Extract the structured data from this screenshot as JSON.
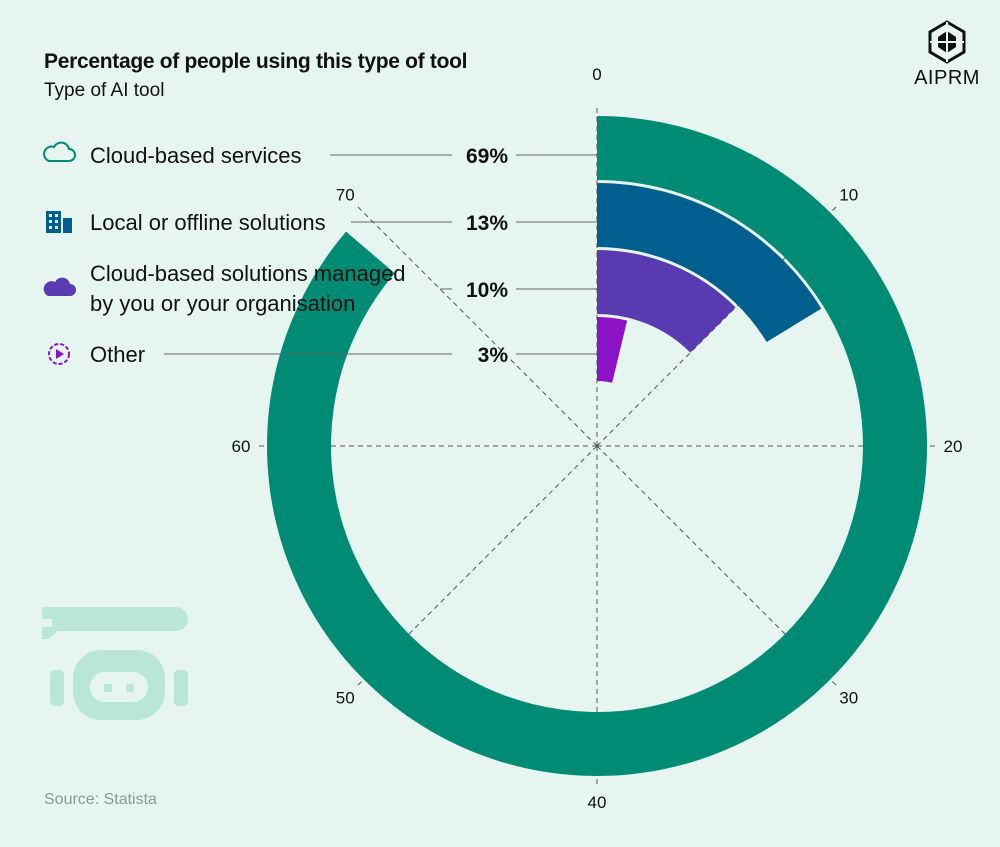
{
  "chart_data": {
    "type": "radial-bar",
    "title": "Percentage of people using this type of tool",
    "subtitle": "Type of AI tool",
    "categories": [
      "Cloud-based services",
      "Local or offline solutions",
      "Cloud-based solutions managed by you or your organisation",
      "Other"
    ],
    "category_lines": [
      [
        "Cloud-based services"
      ],
      [
        "Local or offline solutions"
      ],
      [
        "Cloud-based solutions managed",
        "by you or your organisation"
      ],
      [
        "Other"
      ]
    ],
    "values": [
      69,
      13,
      10,
      3
    ],
    "value_labels": [
      "69%",
      "13%",
      "10%",
      "3%"
    ],
    "axis_max": 80,
    "ticks": [
      0,
      10,
      20,
      30,
      40,
      50,
      60,
      70
    ],
    "colors": [
      "#008c74",
      "#005f8e",
      "#5a3ab1",
      "#8b12c7"
    ],
    "icons": [
      "cloud-outline-icon",
      "building-icon",
      "cloud-solid-icon",
      "gear-play-icon"
    ],
    "source": "Source: Statista",
    "brand": "AIPRM"
  }
}
